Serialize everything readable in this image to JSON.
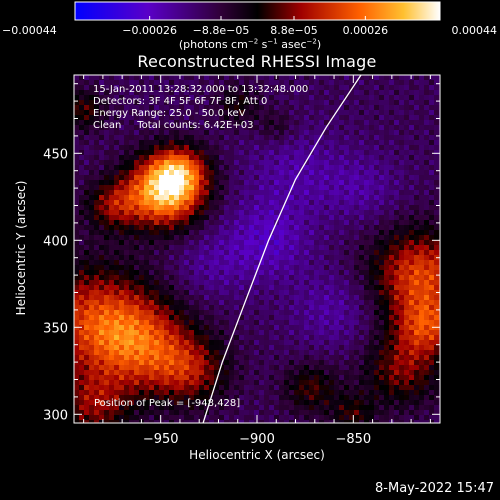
{
  "chart_data": {
    "type": "heatmap",
    "title": "Reconstructed RHESSI Image",
    "xlabel": "Heliocentric X (arcsec)",
    "ylabel": "Heliocentric Y (arcsec)",
    "xlim": [
      -995,
      -805
    ],
    "ylim": [
      295,
      495
    ],
    "x_ticks": [
      -950,
      -900,
      -850
    ],
    "x_tick_labels": [
      "−950",
      "−900",
      "−850"
    ],
    "y_ticks": [
      300,
      350,
      400,
      450
    ],
    "y_tick_labels": [
      "300",
      "350",
      "400",
      "450"
    ],
    "colorbar": {
      "ticks": [
        -0.00044,
        -0.00026,
        -8.8e-05,
        8.8e-05,
        0.00026,
        0.00044
      ],
      "tick_labels": [
        "−0.00044",
        "−0.00026",
        "−8.8e−05",
        "8.8e−05",
        "0.00026",
        "0.00044"
      ],
      "unit_prefix": "(photons cm",
      "unit_exp1": "−2",
      "unit_mid": " s",
      "unit_exp2": "−1",
      "unit_mid2": " asec",
      "unit_exp3": "−2",
      "unit_suffix": ")",
      "colormap": [
        "#0000ff",
        "#5a00c8",
        "#300038",
        "#000000",
        "#a00000",
        "#ff6000",
        "#ffc030",
        "#ffffff"
      ]
    },
    "info_lines": [
      "15-Jan-2011 13:28:32.000 to 13:32:48.000",
      "Detectors: 3F 4F 5F 6F 7F 8F, Att 0",
      "Energy Range: 25.0 - 50.0 keV",
      "Clean     Total counts: 6.42E+03"
    ],
    "peak_text": "Position of Peak = [-948,428]",
    "peak": {
      "x": -948,
      "y": 428
    },
    "limb_curve": [
      {
        "x": -928,
        "y": 295
      },
      {
        "x": -918,
        "y": 330
      },
      {
        "x": -906,
        "y": 365
      },
      {
        "x": -894,
        "y": 400
      },
      {
        "x": -880,
        "y": 435
      },
      {
        "x": -864,
        "y": 465
      },
      {
        "x": -846,
        "y": 495
      }
    ]
  },
  "footer_date": "8-May-2022 15:47"
}
